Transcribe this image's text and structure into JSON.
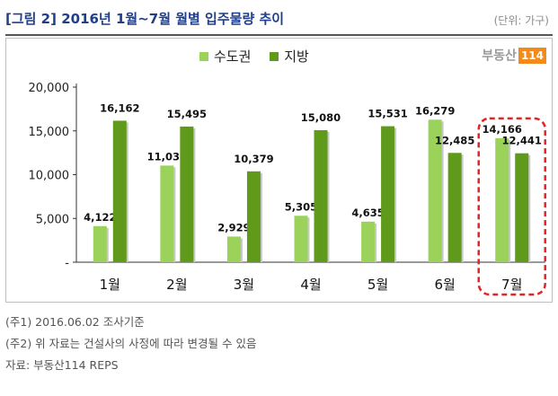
{
  "header": {
    "title": "[그림 2] 2016년 1월~7월 월별 입주물량 추이",
    "unit": "(단위: 가구)"
  },
  "brand": {
    "name": "부동산",
    "num": "114"
  },
  "colors": {
    "series1": "#9bd35a",
    "series2": "#5f9a1a",
    "highlight": "#e32424",
    "title": "#1f3f8a"
  },
  "chart_data": {
    "type": "bar",
    "categories": [
      "1월",
      "2월",
      "3월",
      "4월",
      "5월",
      "6월",
      "7월"
    ],
    "series": [
      {
        "name": "수도권",
        "values": [
          4122,
          11038,
          2929,
          5305,
          4635,
          16279,
          14166
        ]
      },
      {
        "name": "지방",
        "values": [
          16162,
          15495,
          10379,
          15080,
          15531,
          12485,
          12441
        ]
      }
    ],
    "data_labels": [
      [
        "4,122",
        "11,038",
        "2,929",
        "5,305",
        "4,635",
        "16,279",
        "14,166"
      ],
      [
        "16,162",
        "15,495",
        "10,379",
        "15,080",
        "15,531",
        "12,485",
        "12,441"
      ]
    ],
    "ylim": [
      0,
      20000
    ],
    "y_ticks": [
      0,
      5000,
      10000,
      15000,
      20000
    ],
    "y_tick_labels": [
      "-",
      "5,000",
      "10,000",
      "15,000",
      "20,000"
    ],
    "legend_position": "top-center",
    "grid": false,
    "highlight_category": "7월"
  },
  "notes": [
    "(주1) 2016.06.02  조사기준",
    "(주2) 위 자료는 건설사의 사정에 따라 변경될 수 있음",
    "자료: 부동산114  REPS"
  ]
}
